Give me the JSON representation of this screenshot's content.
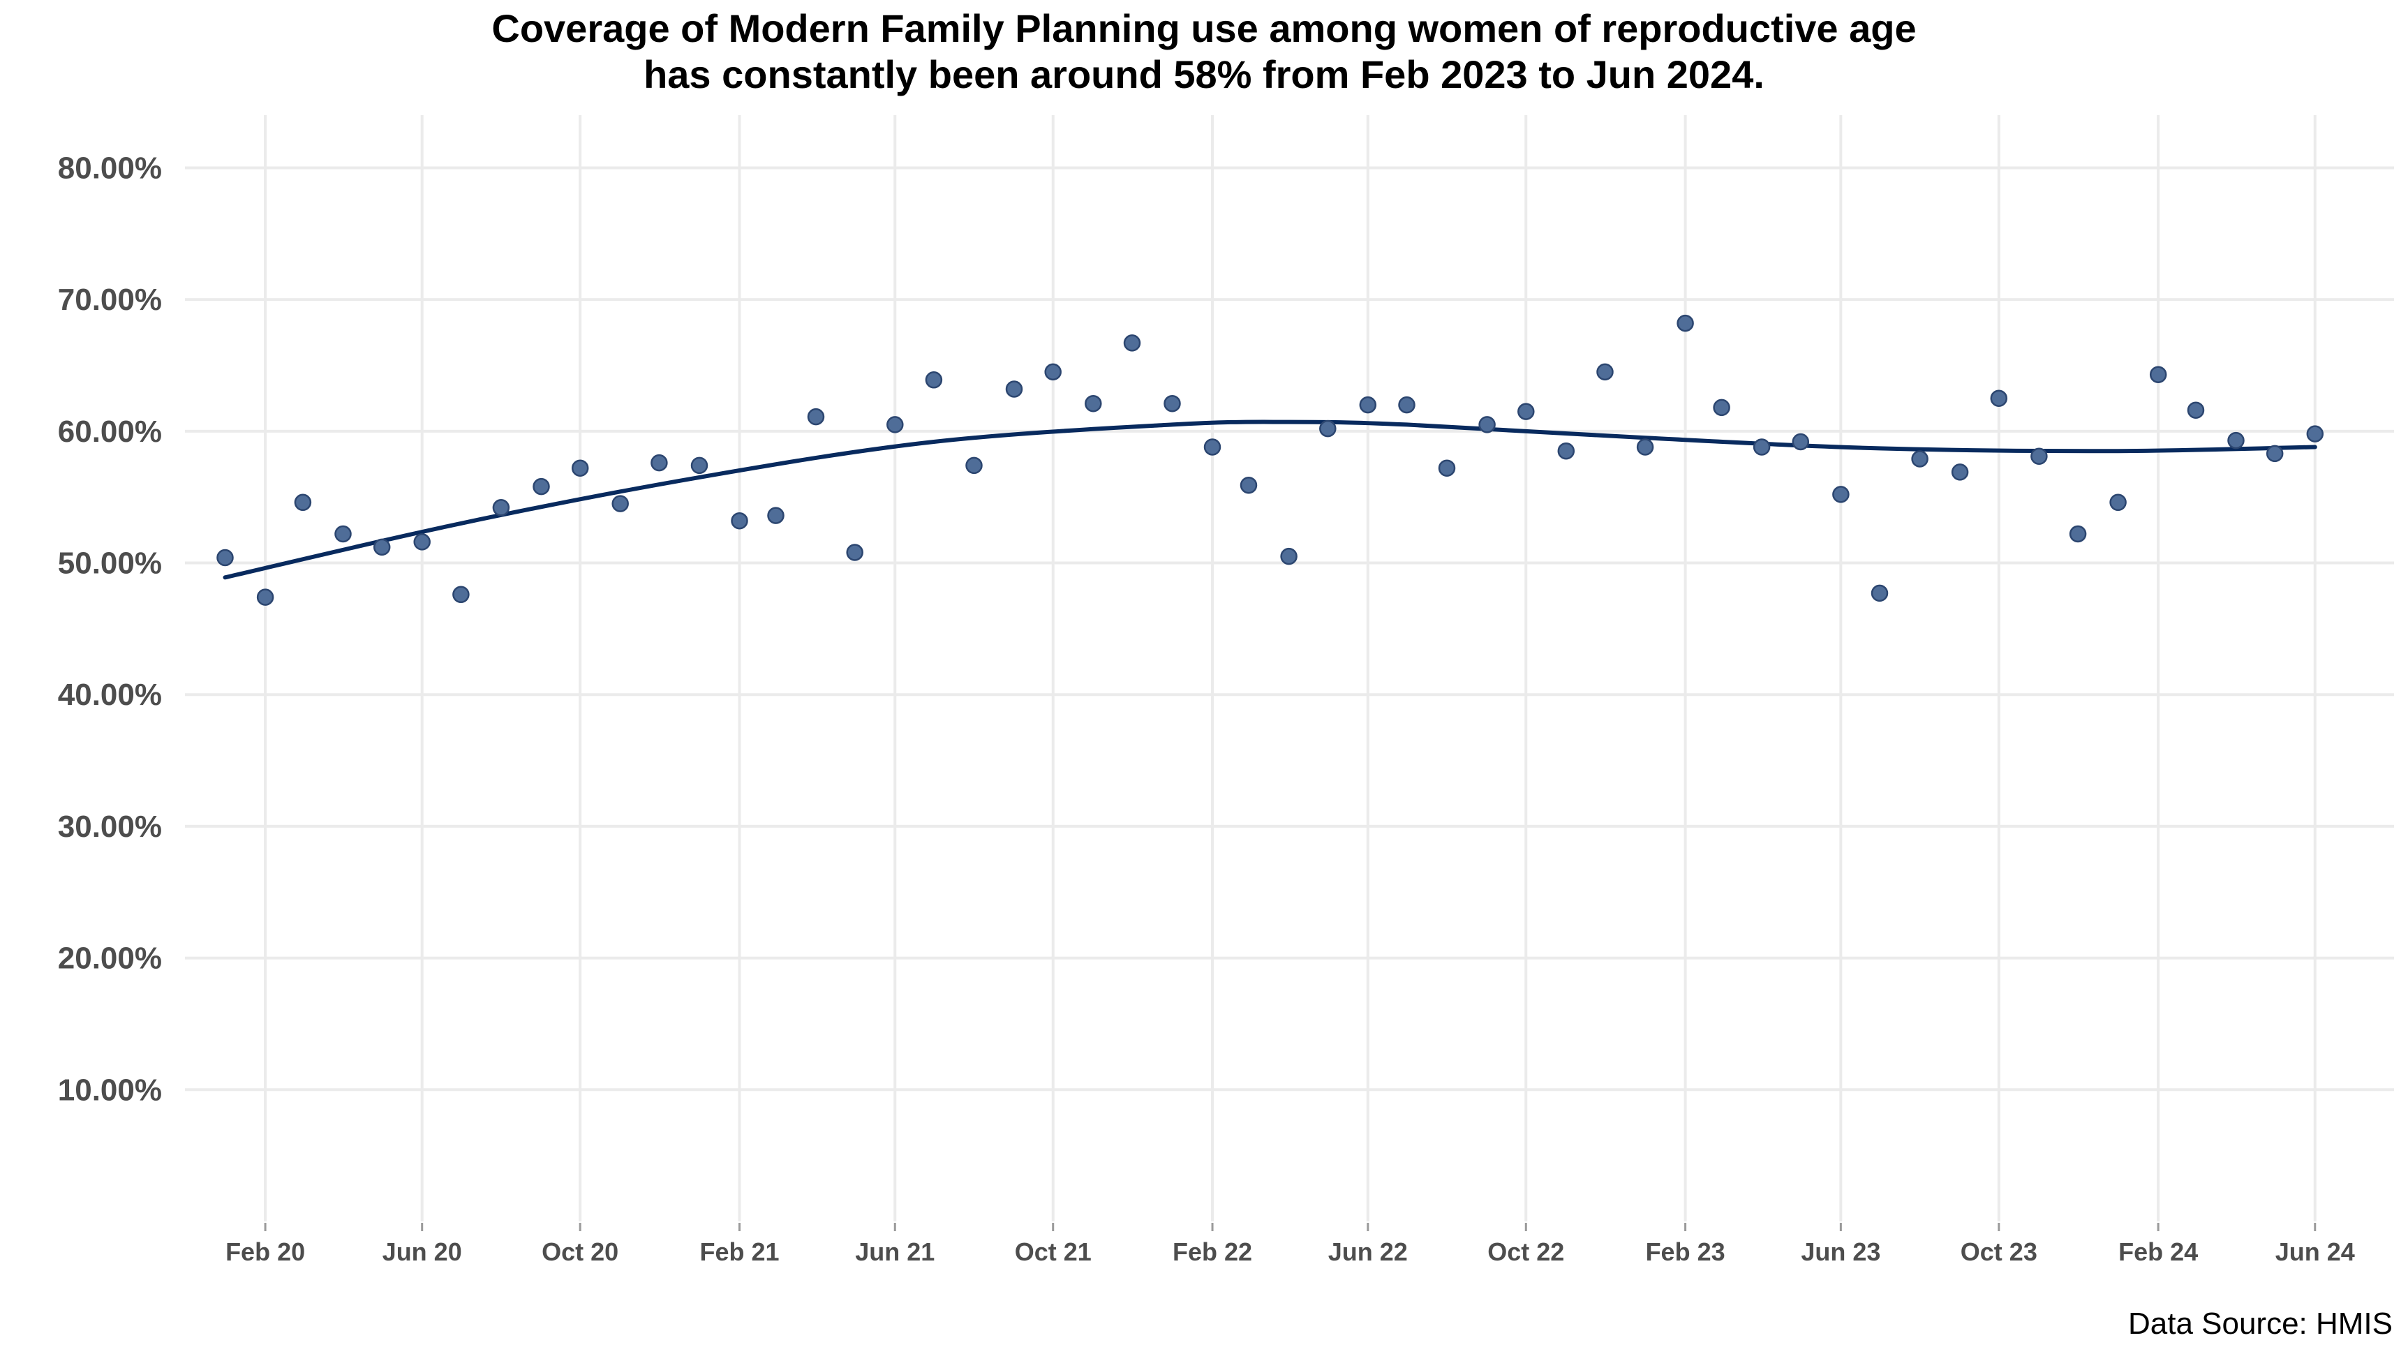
{
  "chart_data": {
    "type": "scatter",
    "title_lines": [
      "Coverage of Modern Family Planning use among women of reproductive age",
      "has constantly been around 58% from Feb 2023 to Jun 2024."
    ],
    "xlabel": "",
    "ylabel": "",
    "source": "Data Source: HMIS",
    "ylim": [
      0,
      0.84
    ],
    "y_ticks": [
      {
        "value": 0.1,
        "label": "10.00%"
      },
      {
        "value": 0.2,
        "label": "20.00%"
      },
      {
        "value": 0.3,
        "label": "30.00%"
      },
      {
        "value": 0.4,
        "label": "40.00%"
      },
      {
        "value": 0.5,
        "label": "50.00%"
      },
      {
        "value": 0.6,
        "label": "60.00%"
      },
      {
        "value": 0.7,
        "label": "70.00%"
      },
      {
        "value": 0.8,
        "label": "80.00%"
      }
    ],
    "x_ticks": [
      {
        "value": "2020-02-01",
        "label": "Feb 20"
      },
      {
        "value": "2020-06-01",
        "label": "Jun 20"
      },
      {
        "value": "2020-10-01",
        "label": "Oct 20"
      },
      {
        "value": "2021-02-01",
        "label": "Feb 21"
      },
      {
        "value": "2021-06-01",
        "label": "Jun 21"
      },
      {
        "value": "2021-10-01",
        "label": "Oct 21"
      },
      {
        "value": "2022-02-01",
        "label": "Feb 22"
      },
      {
        "value": "2022-06-01",
        "label": "Jun 22"
      },
      {
        "value": "2022-10-01",
        "label": "Oct 22"
      },
      {
        "value": "2023-02-01",
        "label": "Feb 23"
      },
      {
        "value": "2023-06-01",
        "label": "Jun 23"
      },
      {
        "value": "2023-10-01",
        "label": "Oct 23"
      },
      {
        "value": "2024-02-01",
        "label": "Feb 24"
      },
      {
        "value": "2024-06-01",
        "label": "Jun 24"
      }
    ],
    "xlim": [
      "2019-12-01",
      "2024-08-01"
    ],
    "grid": true,
    "point_color": "#4f6d98",
    "point_stroke": "#2c4670",
    "trend_color": "#082a5e",
    "points": [
      {
        "date": "2020-01-01",
        "value": 0.504
      },
      {
        "date": "2020-02-01",
        "value": 0.474
      },
      {
        "date": "2020-03-01",
        "value": 0.546
      },
      {
        "date": "2020-04-01",
        "value": 0.522
      },
      {
        "date": "2020-05-01",
        "value": 0.512
      },
      {
        "date": "2020-06-01",
        "value": 0.516
      },
      {
        "date": "2020-07-01",
        "value": 0.476
      },
      {
        "date": "2020-08-01",
        "value": 0.542
      },
      {
        "date": "2020-09-01",
        "value": 0.558
      },
      {
        "date": "2020-10-01",
        "value": 0.572
      },
      {
        "date": "2020-11-01",
        "value": 0.545
      },
      {
        "date": "2020-12-01",
        "value": 0.576
      },
      {
        "date": "2021-01-01",
        "value": 0.574
      },
      {
        "date": "2021-02-01",
        "value": 0.532
      },
      {
        "date": "2021-03-01",
        "value": 0.536
      },
      {
        "date": "2021-04-01",
        "value": 0.611
      },
      {
        "date": "2021-05-01",
        "value": 0.508
      },
      {
        "date": "2021-06-01",
        "value": 0.605
      },
      {
        "date": "2021-07-01",
        "value": 0.639
      },
      {
        "date": "2021-08-01",
        "value": 0.574
      },
      {
        "date": "2021-09-01",
        "value": 0.632
      },
      {
        "date": "2021-10-01",
        "value": 0.645
      },
      {
        "date": "2021-11-01",
        "value": 0.621
      },
      {
        "date": "2021-12-01",
        "value": 0.667
      },
      {
        "date": "2022-01-01",
        "value": 0.621
      },
      {
        "date": "2022-02-01",
        "value": 0.588
      },
      {
        "date": "2022-03-01",
        "value": 0.559
      },
      {
        "date": "2022-04-01",
        "value": 0.505
      },
      {
        "date": "2022-05-01",
        "value": 0.602
      },
      {
        "date": "2022-06-01",
        "value": 0.62
      },
      {
        "date": "2022-07-01",
        "value": 0.62
      },
      {
        "date": "2022-08-01",
        "value": 0.572
      },
      {
        "date": "2022-09-01",
        "value": 0.605
      },
      {
        "date": "2022-10-01",
        "value": 0.615
      },
      {
        "date": "2022-11-01",
        "value": 0.585
      },
      {
        "date": "2022-12-01",
        "value": 0.645
      },
      {
        "date": "2023-01-01",
        "value": 0.588
      },
      {
        "date": "2023-02-01",
        "value": 0.682
      },
      {
        "date": "2023-03-01",
        "value": 0.618
      },
      {
        "date": "2023-04-01",
        "value": 0.588
      },
      {
        "date": "2023-05-01",
        "value": 0.592
      },
      {
        "date": "2023-06-01",
        "value": 0.552
      },
      {
        "date": "2023-07-01",
        "value": 0.477
      },
      {
        "date": "2023-08-01",
        "value": 0.579
      },
      {
        "date": "2023-09-01",
        "value": 0.569
      },
      {
        "date": "2023-10-01",
        "value": 0.625
      },
      {
        "date": "2023-11-01",
        "value": 0.581
      },
      {
        "date": "2023-12-01",
        "value": 0.522
      },
      {
        "date": "2024-01-01",
        "value": 0.546
      },
      {
        "date": "2024-02-01",
        "value": 0.643
      },
      {
        "date": "2024-03-01",
        "value": 0.616
      },
      {
        "date": "2024-04-01",
        "value": 0.593
      },
      {
        "date": "2024-05-01",
        "value": 0.583
      },
      {
        "date": "2024-06-01",
        "value": 0.598
      }
    ],
    "trend": [
      {
        "date": "2020-01-01",
        "value": 0.489
      },
      {
        "date": "2020-07-01",
        "value": 0.53
      },
      {
        "date": "2021-01-01",
        "value": 0.565
      },
      {
        "date": "2021-07-01",
        "value": 0.592
      },
      {
        "date": "2022-01-01",
        "value": 0.605
      },
      {
        "date": "2022-04-01",
        "value": 0.607
      },
      {
        "date": "2022-07-01",
        "value": 0.605
      },
      {
        "date": "2023-01-01",
        "value": 0.595
      },
      {
        "date": "2023-07-01",
        "value": 0.587
      },
      {
        "date": "2024-01-01",
        "value": 0.585
      },
      {
        "date": "2024-06-01",
        "value": 0.588
      }
    ]
  }
}
